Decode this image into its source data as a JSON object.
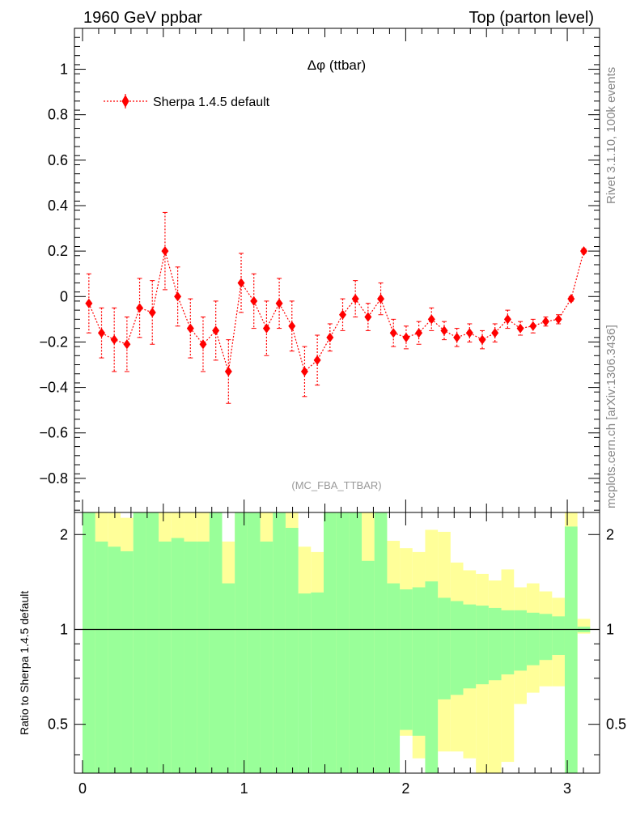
{
  "header": {
    "left": "1960 GeV ppbar",
    "right": "Top (parton level)"
  },
  "side_text": {
    "rivet": "Rivet 3.1.10,  100k events",
    "mcplots": "mcplots.cern.ch [arXiv:1306.3436]"
  },
  "chart_data": [
    {
      "type": "line",
      "title": "Δφ (ttbar)",
      "watermark": "(MC_FBA_TTBAR)",
      "legend": {
        "placement": "top-left",
        "entries": [
          "Sherpa 1.4.5 default"
        ]
      },
      "colors": {
        "series": "#ff0000"
      },
      "xlim": [
        -0.05,
        3.2
      ],
      "ylim": [
        -0.95,
        1.18
      ],
      "yticks": [
        -0.8,
        -0.6,
        -0.4,
        -0.2,
        0,
        0.2,
        0.4,
        0.6,
        0.8,
        1
      ],
      "ytick_labels": [
        "−0.8",
        "−0.6",
        "−0.4",
        "−0.2",
        "0",
        "0.2",
        "0.4",
        "0.6",
        "0.8",
        "1"
      ],
      "series": [
        {
          "name": "Sherpa 1.4.5 default",
          "marker": "diamond",
          "x": [
            0.0393,
            0.1178,
            0.1963,
            0.2749,
            0.3534,
            0.432,
            0.5105,
            0.589,
            0.6676,
            0.7461,
            0.8247,
            0.9032,
            0.9817,
            1.0603,
            1.1388,
            1.2174,
            1.2959,
            1.3744,
            1.453,
            1.5315,
            1.6101,
            1.6886,
            1.7671,
            1.8457,
            1.9242,
            2.0028,
            2.0813,
            2.1598,
            2.2384,
            2.3169,
            2.3955,
            2.474,
            2.5525,
            2.6311,
            2.7096,
            2.7882,
            2.8667,
            2.9452,
            3.0238,
            3.1023
          ],
          "y": [
            -0.03,
            -0.16,
            -0.19,
            -0.21,
            -0.05,
            -0.07,
            0.2,
            0.0,
            -0.14,
            -0.21,
            -0.15,
            -0.33,
            0.06,
            -0.02,
            -0.14,
            -0.03,
            -0.13,
            -0.33,
            -0.28,
            -0.18,
            -0.08,
            -0.01,
            -0.09,
            -0.01,
            -0.16,
            -0.18,
            -0.16,
            -0.1,
            -0.15,
            -0.18,
            -0.16,
            -0.19,
            -0.16,
            -0.1,
            -0.14,
            -0.13,
            -0.11,
            -0.1,
            -0.01,
            0.2
          ],
          "yerr": [
            0.13,
            0.11,
            0.14,
            0.12,
            0.13,
            0.14,
            0.17,
            0.13,
            0.13,
            0.12,
            0.13,
            0.14,
            0.13,
            0.12,
            0.12,
            0.11,
            0.11,
            0.11,
            0.11,
            0.06,
            0.07,
            0.08,
            0.06,
            0.07,
            0.06,
            0.05,
            0.05,
            0.05,
            0.04,
            0.04,
            0.04,
            0.04,
            0.04,
            0.04,
            0.03,
            0.03,
            0.02,
            0.02,
            0.01,
            0.01
          ]
        }
      ]
    },
    {
      "type": "bar",
      "ylabel": "Ratio to Sherpa 1.4.5 default",
      "reference_line": 1,
      "ylim": [
        0.35,
        2.35
      ],
      "yscale": "log",
      "yticks": [
        0.5,
        1,
        2
      ],
      "ytick_labels": [
        "0.5",
        "1",
        "2"
      ],
      "xticks": [
        0,
        1,
        2,
        3
      ],
      "xtick_labels": [
        "0",
        "1",
        "2",
        "3"
      ],
      "colors": {
        "inner_band": "#99ff99",
        "outer_band": "#ffff99"
      },
      "bin_edges": [
        0.0,
        0.0785,
        0.1571,
        0.2356,
        0.3142,
        0.3927,
        0.4712,
        0.5498,
        0.6283,
        0.7069,
        0.7854,
        0.8639,
        0.9425,
        1.021,
        1.0996,
        1.1781,
        1.2566,
        1.3352,
        1.4137,
        1.4923,
        1.5708,
        1.6493,
        1.7279,
        1.8064,
        1.885,
        1.9635,
        2.042,
        2.1206,
        2.1991,
        2.2777,
        2.3562,
        2.4347,
        2.5133,
        2.5918,
        2.6704,
        2.7489,
        2.8274,
        2.906,
        2.9845,
        3.0631,
        3.1416
      ],
      "inner_band": {
        "low": [
          0.3,
          0.3,
          0.3,
          0.3,
          0.3,
          0.3,
          0.3,
          0.3,
          0.3,
          0.3,
          0.3,
          0.3,
          0.3,
          0.3,
          0.3,
          0.3,
          0.3,
          0.3,
          0.3,
          0.3,
          0.3,
          0.3,
          0.3,
          0.3,
          0.3,
          0.48,
          0.46,
          0.3,
          0.6,
          0.62,
          0.65,
          0.67,
          0.69,
          0.72,
          0.74,
          0.77,
          0.8,
          0.83,
          0.3,
          0.98
        ],
        "high": [
          3.0,
          1.9,
          1.83,
          1.77,
          3.0,
          3.0,
          1.9,
          1.95,
          1.9,
          1.9,
          3.0,
          1.4,
          3.0,
          3.0,
          1.9,
          3.0,
          2.1,
          1.3,
          1.31,
          3.0,
          3.0,
          3.0,
          1.65,
          3.0,
          1.4,
          1.34,
          1.36,
          1.42,
          1.26,
          1.23,
          1.2,
          1.19,
          1.17,
          1.15,
          1.15,
          1.13,
          1.12,
          1.1,
          2.12,
          1.02
        ]
      },
      "outer_band": {
        "low": [
          0.3,
          0.3,
          0.3,
          0.3,
          0.3,
          0.3,
          0.3,
          0.3,
          0.3,
          0.3,
          0.3,
          0.58,
          0.3,
          0.3,
          0.3,
          0.3,
          0.3,
          0.68,
          0.66,
          0.3,
          0.3,
          0.3,
          0.3,
          0.3,
          0.47,
          0.46,
          0.39,
          0.3,
          0.41,
          0.41,
          0.39,
          0.3,
          0.3,
          0.38,
          0.58,
          0.63,
          0.66,
          0.66,
          0.3,
          0.97
        ],
        "high": [
          3.0,
          3.0,
          2.34,
          2.26,
          3.0,
          3.0,
          3.0,
          3.0,
          2.95,
          3.0,
          2.95,
          1.9,
          3.0,
          3.0,
          3.0,
          3.0,
          3.0,
          1.83,
          1.76,
          3.0,
          3.0,
          3.0,
          3.0,
          3.0,
          1.91,
          1.81,
          1.76,
          2.07,
          2.04,
          1.63,
          1.54,
          1.5,
          1.43,
          1.55,
          1.36,
          1.4,
          1.32,
          1.26,
          3.0,
          1.08
        ]
      }
    }
  ]
}
